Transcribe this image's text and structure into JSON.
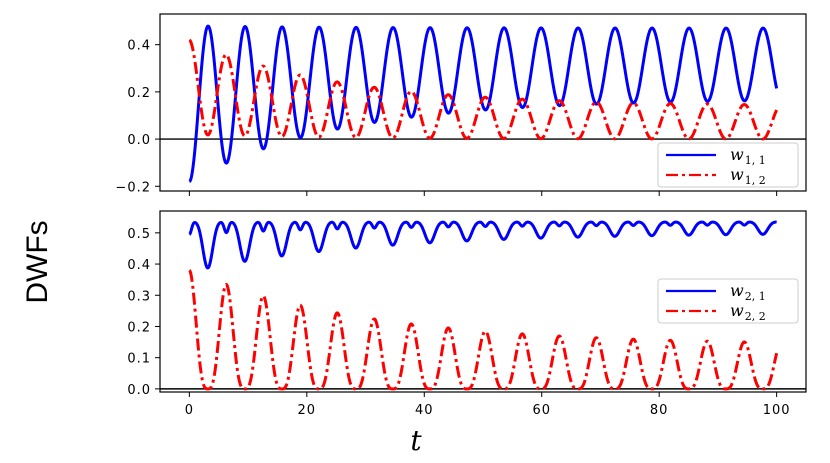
{
  "chart_data": {
    "ylabel": "DWFs",
    "xlabel": "t",
    "panels": [
      {
        "type": "line",
        "xlim": [
          -5,
          105
        ],
        "ylim": [
          -0.22,
          0.53
        ],
        "xticks": [
          0,
          20,
          40,
          60,
          80,
          100
        ],
        "yticks": [
          -0.2,
          0.0,
          0.2,
          0.4
        ],
        "ytick_labels": [
          "−0.2",
          "0.0",
          "0.2",
          "0.4"
        ],
        "hline": 0,
        "legend": "lower-right",
        "series": [
          {
            "name": "w_{1,1}",
            "label_main": "w",
            "label_sub": "1, 1",
            "color": "#0000ff",
            "style": "solid",
            "formula": "oscillation",
            "period": 6.3,
            "phase": 3.1,
            "mean_start": 0.15,
            "mean_end": 0.32,
            "amp_start": 0.33,
            "amp_end": 0.15,
            "decay": 25
          },
          {
            "name": "w_{1,2}",
            "label_main": "w",
            "label_sub": "1, 2",
            "color": "#ff0000",
            "style": "dashdot",
            "formula": "oscillation",
            "period": 6.3,
            "phase": 0,
            "mean_start": 0.22,
            "mean_end": 0.07,
            "amp_start": 0.2,
            "amp_end": 0.07,
            "decay": 25
          }
        ]
      },
      {
        "type": "line",
        "xlim": [
          -5,
          105
        ],
        "ylim": [
          -0.01,
          0.57
        ],
        "xticks": [
          0,
          20,
          40,
          60,
          80,
          100
        ],
        "xtick_labels": [
          "0",
          "20",
          "40",
          "60",
          "80",
          "100"
        ],
        "yticks": [
          0.0,
          0.1,
          0.2,
          0.3,
          0.4,
          0.5
        ],
        "ytick_labels": [
          "0.0",
          "0.1",
          "0.2",
          "0.3",
          "0.4",
          "0.5"
        ],
        "hline": 0,
        "legend": "center-right",
        "series": [
          {
            "name": "w_{2,1}",
            "label_main": "w",
            "label_sub": "2, 1",
            "color": "#0000ff",
            "style": "solid",
            "formula": "double_dip",
            "period": 6.3,
            "phase": 0,
            "top_start": 0.535,
            "top_end": 0.535,
            "depth_start": 0.16,
            "depth_end": 0.035,
            "decay": 30
          },
          {
            "name": "w_{2,2}",
            "label_main": "w",
            "label_sub": "2, 2",
            "color": "#ff0000",
            "style": "dashdot",
            "formula": "rectified",
            "period": 6.3,
            "phase": 0,
            "peak_start": 0.38,
            "peak_end": 0.14,
            "decay": 30
          }
        ]
      }
    ]
  }
}
